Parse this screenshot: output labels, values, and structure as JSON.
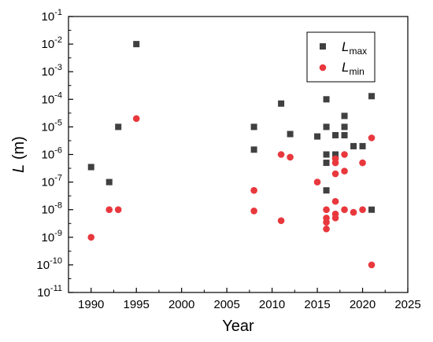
{
  "chart_data": {
    "type": "scatter",
    "xlabel": "Year",
    "ylabel": {
      "symbol": "L",
      "unit": " (m)"
    },
    "xlim": [
      1987.5,
      2025
    ],
    "ylim_log10": [
      -11,
      -1
    ],
    "x_ticks": [
      1990,
      1995,
      2000,
      2005,
      2010,
      2015,
      2020,
      2025
    ],
    "y_ticks": [
      {
        "exp": -1,
        "base": "10",
        "exp_label": "-1"
      },
      {
        "exp": -2,
        "base": "10",
        "exp_label": "-2"
      },
      {
        "exp": -3,
        "base": "10",
        "exp_label": "-3"
      },
      {
        "exp": -4,
        "base": "10",
        "exp_label": "-4"
      },
      {
        "exp": -5,
        "base": "10",
        "exp_label": "-5"
      },
      {
        "exp": -6,
        "base": "10",
        "exp_label": "-6"
      },
      {
        "exp": -7,
        "base": "10",
        "exp_label": "-7"
      },
      {
        "exp": -8,
        "base": "10",
        "exp_label": "-8"
      },
      {
        "exp": -9,
        "base": "10",
        "exp_label": "-9"
      },
      {
        "exp": -10,
        "base": "10",
        "exp_label": "-10"
      },
      {
        "exp": -11,
        "base": "10",
        "exp_label": "-11"
      }
    ],
    "legend_placement": "top-right",
    "grid": false,
    "series": [
      {
        "name": "L",
        "name_sub": "max",
        "marker": "square",
        "color": "#404040",
        "points": [
          [
            1990,
            3.5e-07
          ],
          [
            1992,
            1e-07
          ],
          [
            1993,
            1e-05
          ],
          [
            1995,
            0.01
          ],
          [
            2008,
            1e-05
          ],
          [
            2008,
            1.5e-06
          ],
          [
            2011,
            7e-05
          ],
          [
            2012,
            5.5e-06
          ],
          [
            2015,
            4.5e-06
          ],
          [
            2016,
            0.0001
          ],
          [
            2016,
            1e-05
          ],
          [
            2016,
            1e-06
          ],
          [
            2016,
            5e-07
          ],
          [
            2016,
            5e-08
          ],
          [
            2017,
            5e-06
          ],
          [
            2017,
            1e-06
          ],
          [
            2018,
            2.5e-05
          ],
          [
            2018,
            1e-05
          ],
          [
            2018,
            5e-06
          ],
          [
            2019,
            2e-06
          ],
          [
            2020,
            2e-06
          ],
          [
            2021,
            0.00013
          ],
          [
            2021,
            1e-08
          ]
        ]
      },
      {
        "name": "L",
        "name_sub": "min",
        "marker": "circle",
        "color": "#e8383d",
        "points": [
          [
            1990,
            1e-09
          ],
          [
            1992,
            1e-08
          ],
          [
            1993,
            1e-08
          ],
          [
            1995,
            2e-05
          ],
          [
            2008,
            5e-08
          ],
          [
            2008,
            9e-09
          ],
          [
            2011,
            1e-06
          ],
          [
            2011,
            4e-09
          ],
          [
            2012,
            8e-07
          ],
          [
            2015,
            1e-07
          ],
          [
            2016,
            1e-08
          ],
          [
            2016,
            5e-09
          ],
          [
            2016,
            3.5e-09
          ],
          [
            2016,
            2e-09
          ],
          [
            2017,
            7e-07
          ],
          [
            2017,
            5e-07
          ],
          [
            2017,
            2e-07
          ],
          [
            2017,
            2e-08
          ],
          [
            2017,
            7e-09
          ],
          [
            2017,
            5e-09
          ],
          [
            2018,
            1e-06
          ],
          [
            2018,
            2.5e-07
          ],
          [
            2018,
            1e-08
          ],
          [
            2019,
            8e-09
          ],
          [
            2020,
            5e-07
          ],
          [
            2020,
            1e-08
          ],
          [
            2021,
            4e-06
          ],
          [
            2021,
            1e-10
          ]
        ]
      }
    ]
  }
}
